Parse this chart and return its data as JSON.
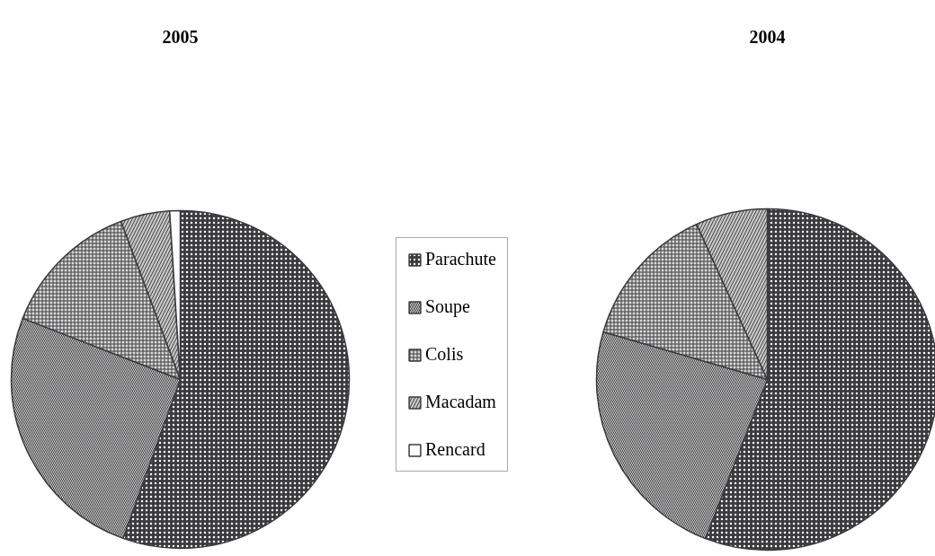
{
  "chart_data": [
    {
      "type": "pie",
      "title": "2005",
      "categories": [
        "Parachute",
        "Soupe",
        "Colis",
        "Macadam",
        "Rencard"
      ],
      "values": [
        55.5,
        25.4,
        13.4,
        4.7,
        1.0
      ],
      "colors": [
        "#3b3b3e",
        "#d4d4d4",
        "#d8d8d8",
        "#c8c8c8",
        "#ffffff"
      ],
      "legend": "right"
    },
    {
      "type": "pie",
      "title": "2004",
      "categories": [
        null,
        null,
        null,
        null,
        null
      ],
      "values": [
        55.9,
        23.6,
        13.7,
        6.8,
        0
      ],
      "colors": [
        "#3b3b3e",
        "#d4d4d4",
        "#d8d8d8",
        "#c8c8c8",
        "#ffffff"
      ]
    }
  ]
}
